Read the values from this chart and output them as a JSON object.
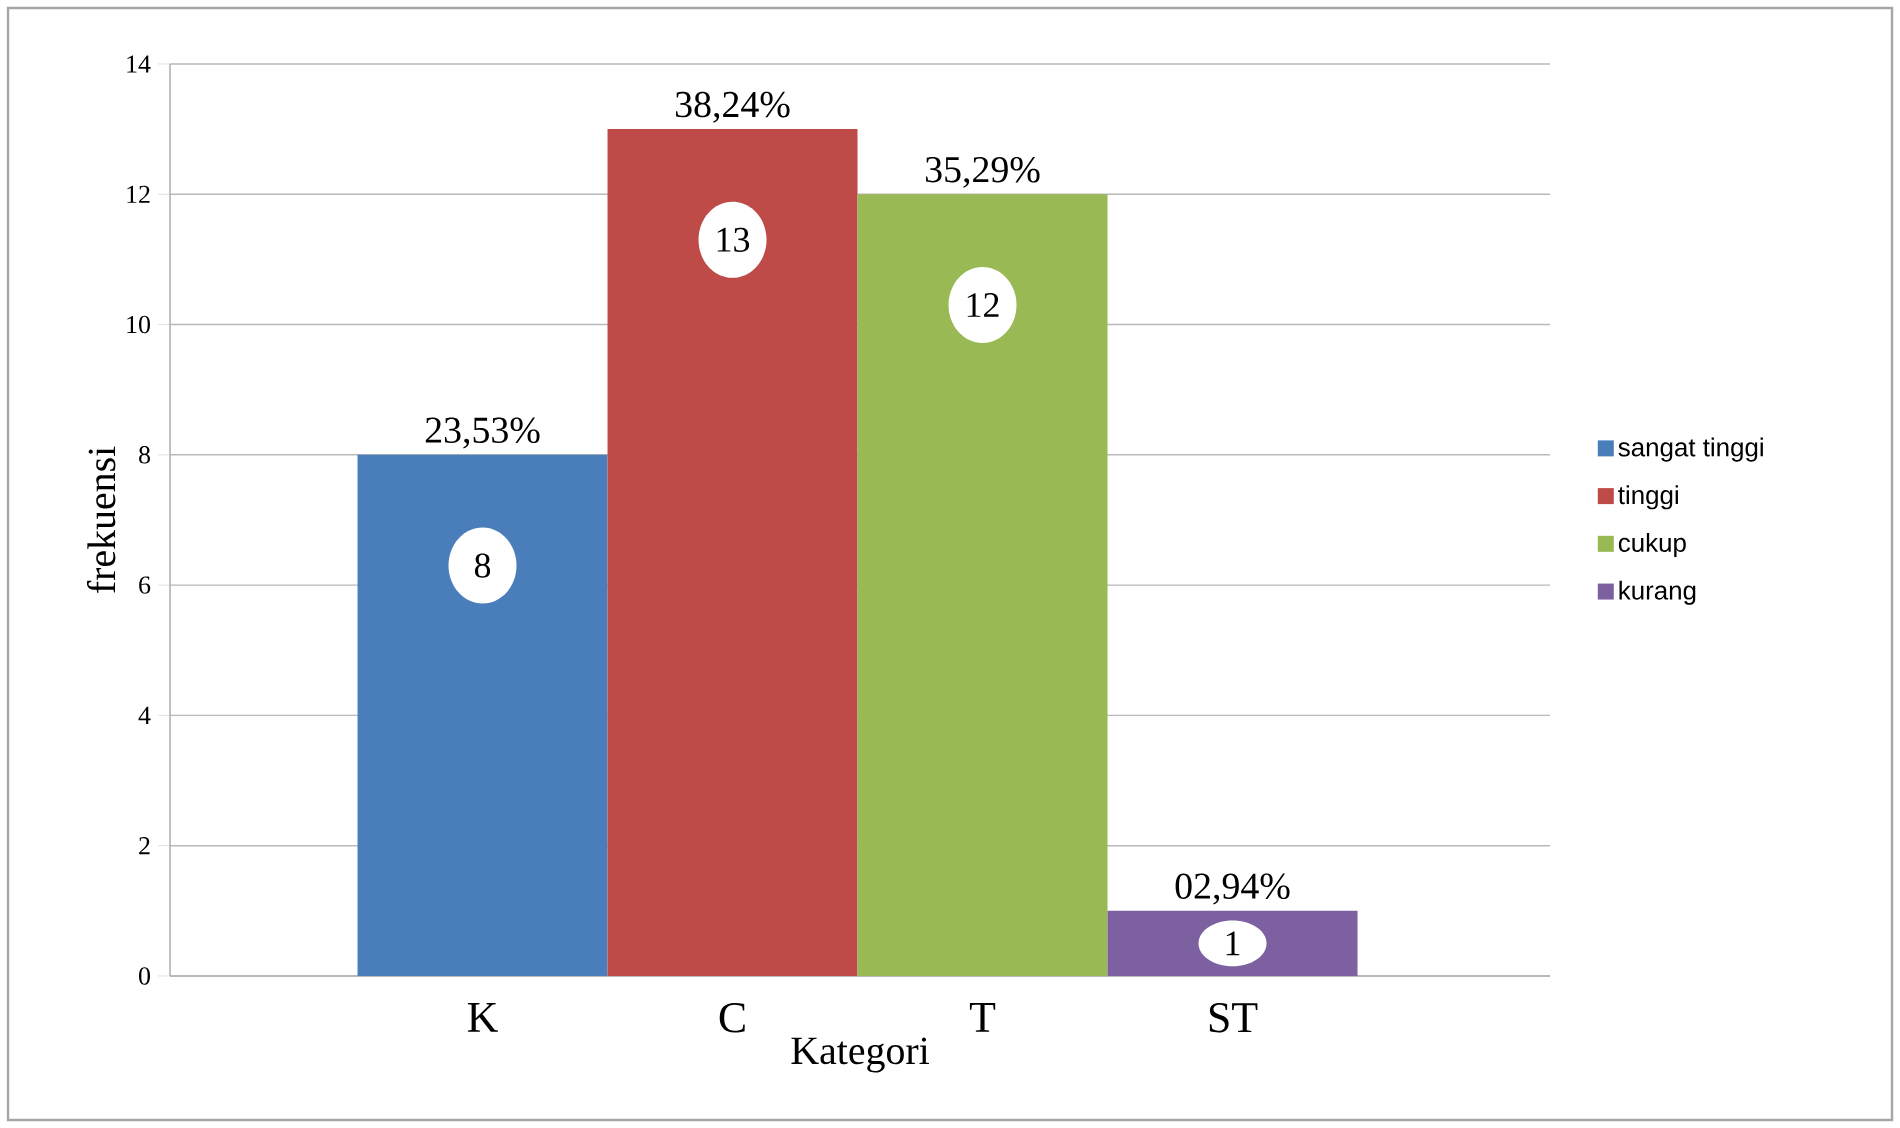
{
  "chart_data": {
    "type": "bar",
    "xlabel": "Kategori",
    "ylabel": "frekuensi",
    "categories": [
      "K",
      "C",
      "T",
      "ST"
    ],
    "series": [
      {
        "name": "sangat tinggi",
        "color": "#4a7ebb",
        "values": [
          8,
          null,
          null,
          null
        ]
      },
      {
        "name": "tinggi",
        "color": "#be4b48",
        "values": [
          null,
          13,
          null,
          null
        ]
      },
      {
        "name": "cukup",
        "color": "#98b954",
        "values": [
          null,
          null,
          12,
          null
        ]
      },
      {
        "name": "kurang",
        "color": "#7d60a0",
        "values": [
          null,
          null,
          null,
          1
        ]
      }
    ],
    "annotations": [
      {
        "text": "23,53%",
        "x": "K",
        "y": 8
      },
      {
        "text": "38,24%",
        "x": "C",
        "y": 13
      },
      {
        "text": "35,29%",
        "x": "T",
        "y": 12
      },
      {
        "text": "02,94%",
        "x": "ST",
        "y": 1
      }
    ],
    "ylim": [
      0,
      14
    ],
    "yticks": [
      0,
      2,
      4,
      6,
      8,
      10,
      12,
      14
    ],
    "grid": "y",
    "legend": "right",
    "data_labels": true
  }
}
